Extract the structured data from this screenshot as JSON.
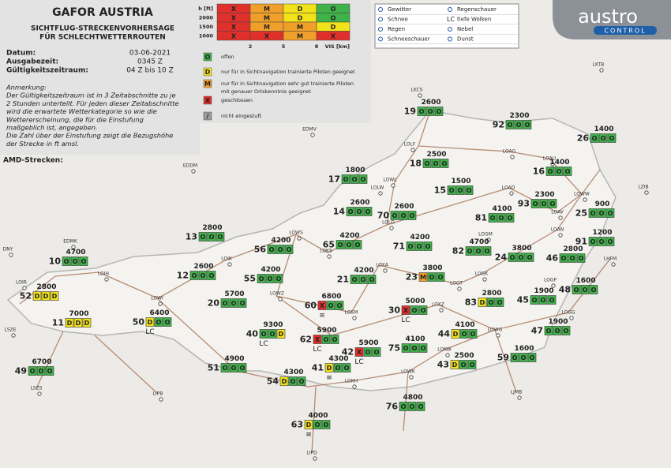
{
  "header": {
    "title": "GAFOR AUSTRIA",
    "subtitle": [
      "SICHTFLUG-STRECKENVORHERSAGE",
      "FÜR SCHLECHTWETTERROUTEN"
    ]
  },
  "info": [
    {
      "label": "Datum:",
      "value": "03-06-2021"
    },
    {
      "label": "Ausgabezeit:",
      "value": "0345 Z"
    },
    {
      "label": "Gültigkeitszeitraum:",
      "value": "04 Z bis 10 Z"
    }
  ],
  "note": [
    "Anmerkung:",
    "Der Gültigkeitszeitraum ist in 3 Zeitabschnitte zu je",
    "2 Stunden unterteilt. Für jeden dieser Zeitabschnitte",
    "wird die erwartete Wetterkategorie so wie die",
    "Wettererscheinung, die für die Einstufung",
    "maßgeblich ist, angegeben.",
    "Die Zahl über der Einstufung zeigt die Bezugshöhe",
    "der Strecke in ft amsl."
  ],
  "section": "AMD-Strecken:",
  "categories": [
    {
      "code": "O",
      "color": "#3fb24a",
      "text": [
        "offen"
      ]
    },
    {
      "code": "D",
      "color": "#f2e21a",
      "text": [
        "nur für in Sichtnavigation trainierte Piloten geeignet"
      ]
    },
    {
      "code": "M",
      "color": "#f0a02a",
      "text": [
        "nur für in Sichtnavigation sehr gut trainierte Piloten",
        "mit genauer Ortskenntnis geeignet"
      ]
    },
    {
      "code": "X",
      "color": "#e0302c",
      "text": [
        "geschlossen"
      ]
    },
    {
      "code": "/",
      "color": "#9a9a9a",
      "text": [
        "nicht eingestuft"
      ]
    }
  ],
  "chart": {
    "y_label": "h [ft]",
    "rows": [
      "2000",
      "1500",
      "1000"
    ],
    "cells": [
      [
        "X",
        "M",
        "D",
        "O"
      ],
      [
        "X",
        "M",
        "D",
        "O"
      ],
      [
        "X",
        "M",
        "M",
        "D"
      ],
      [
        "X",
        "X",
        "M",
        "X"
      ]
    ],
    "x_labels": [
      "2",
      "5",
      "8",
      "VIS [km]"
    ]
  },
  "weather_legend": [
    "Gewitter",
    "Regenschauer",
    "Schnee",
    "tiefe Wolken",
    "Regen",
    "Nebel",
    "Schneeschauer",
    "Dunst"
  ],
  "weather_symbol_text": "LC",
  "logo": {
    "name": "austro",
    "sub": "CONTROL"
  },
  "routes": [
    {
      "id": "19",
      "altitude": "2600",
      "status": [
        "O",
        "O",
        "O"
      ]
    },
    {
      "id": "92",
      "altitude": "2300",
      "status": [
        "O",
        "O",
        "O"
      ]
    },
    {
      "id": "26",
      "altitude": "1400",
      "status": [
        "O",
        "O",
        "O"
      ]
    },
    {
      "id": "18",
      "altitude": "2500",
      "status": [
        "O",
        "O",
        "O"
      ]
    },
    {
      "id": "17",
      "altitude": "1800",
      "status": [
        "O",
        "O",
        "O"
      ]
    },
    {
      "id": "16",
      "altitude": "1400",
      "status": [
        "O",
        "O",
        "O"
      ]
    },
    {
      "id": "15",
      "altitude": "1500",
      "status": [
        "O",
        "O",
        "O"
      ]
    },
    {
      "id": "14",
      "altitude": "2600",
      "status": [
        "O",
        "O",
        "O"
      ]
    },
    {
      "id": "70",
      "altitude": "2600",
      "status": [
        "O",
        "O",
        "O"
      ]
    },
    {
      "id": "93",
      "altitude": "2300",
      "status": [
        "O",
        "O",
        "O"
      ]
    },
    {
      "id": "81",
      "altitude": "4100",
      "status": [
        "O",
        "O",
        "O"
      ]
    },
    {
      "id": "25",
      "altitude": "900",
      "status": [
        "O",
        "O",
        "O"
      ]
    },
    {
      "id": "13",
      "altitude": "2800",
      "status": [
        "O",
        "O",
        "O"
      ]
    },
    {
      "id": "56",
      "altitude": "4200",
      "status": [
        "O",
        "O",
        "O"
      ]
    },
    {
      "id": "65",
      "altitude": "4200",
      "status": [
        "O",
        "O",
        "O"
      ]
    },
    {
      "id": "71",
      "altitude": "4200",
      "status": [
        "O",
        "O",
        "O"
      ]
    },
    {
      "id": "82",
      "altitude": "4700",
      "status": [
        "O",
        "O",
        "O"
      ]
    },
    {
      "id": "24",
      "altitude": "3800",
      "status": [
        "O",
        "O",
        "O"
      ]
    },
    {
      "id": "91",
      "altitude": "1200",
      "status": [
        "O",
        "O",
        "O"
      ]
    },
    {
      "id": "46",
      "altitude": "2800",
      "status": [
        "O",
        "O",
        "O"
      ]
    },
    {
      "id": "10",
      "altitude": "4700",
      "status": [
        "O",
        "O",
        "O"
      ]
    },
    {
      "id": "12",
      "altitude": "2600",
      "status": [
        "O",
        "O",
        "O"
      ]
    },
    {
      "id": "55",
      "altitude": "4200",
      "status": [
        "O",
        "O",
        "O"
      ]
    },
    {
      "id": "21",
      "altitude": "4200",
      "status": [
        "O",
        "O",
        "O"
      ]
    },
    {
      "id": "23",
      "altitude": "3800",
      "status": [
        "M",
        "O",
        "O"
      ]
    },
    {
      "id": "48",
      "altitude": "1600",
      "status": [
        "O",
        "O",
        "O"
      ]
    },
    {
      "id": "52",
      "altitude": "2800",
      "status": [
        "D",
        "D",
        "D"
      ]
    },
    {
      "id": "20",
      "altitude": "5700",
      "status": [
        "O",
        "O",
        "O"
      ]
    },
    {
      "id": "60",
      "altitude": "6800",
      "status": [
        "X",
        "O",
        "O"
      ],
      "symbol": "≡"
    },
    {
      "id": "83",
      "altitude": "2800",
      "status": [
        "D",
        "O",
        "O"
      ]
    },
    {
      "id": "45",
      "altitude": "1900",
      "status": [
        "O",
        "O",
        "O"
      ]
    },
    {
      "id": "30",
      "altitude": "5000",
      "status": [
        "X",
        "O",
        "O"
      ],
      "symbol": "LC"
    },
    {
      "id": "11",
      "altitude": "7000",
      "status": [
        "D",
        "D",
        "D"
      ]
    },
    {
      "id": "50",
      "altitude": "6400",
      "status": [
        "D",
        "O",
        "O"
      ],
      "symbol": "LC"
    },
    {
      "id": "47",
      "altitude": "1900",
      "status": [
        "O",
        "O",
        "O"
      ]
    },
    {
      "id": "40",
      "altitude": "9300",
      "status": [
        "O",
        "O",
        "D"
      ],
      "symbol": "LC"
    },
    {
      "id": "62",
      "altitude": "5900",
      "status": [
        "X",
        "O",
        "O"
      ],
      "symbol": "LC"
    },
    {
      "id": "44",
      "altitude": "4100",
      "status": [
        "D",
        "O",
        "O"
      ]
    },
    {
      "id": "42",
      "altitude": "5900",
      "status": [
        "X",
        "O",
        "O"
      ],
      "symbol": "LC"
    },
    {
      "id": "75",
      "altitude": "4100",
      "status": [
        "O",
        "O",
        "O"
      ]
    },
    {
      "id": "59",
      "altitude": "1600",
      "status": [
        "O",
        "O",
        "O"
      ]
    },
    {
      "id": "49",
      "altitude": "6700",
      "status": [
        "O",
        "O",
        "O"
      ]
    },
    {
      "id": "51",
      "altitude": "4900",
      "status": [
        "O",
        "O",
        "O"
      ]
    },
    {
      "id": "41",
      "altitude": "4300",
      "status": [
        "D",
        "O",
        "O"
      ],
      "symbol": "≡"
    },
    {
      "id": "43",
      "altitude": "2500",
      "status": [
        "D",
        "O",
        "O"
      ]
    },
    {
      "id": "54",
      "altitude": "4300",
      "status": [
        "D",
        "O",
        "O"
      ]
    },
    {
      "id": "76",
      "altitude": "4800",
      "status": [
        "O",
        "O",
        "O"
      ]
    },
    {
      "id": "63",
      "altitude": "4000",
      "status": [
        "D",
        "O",
        "O"
      ],
      "symbol": "≡"
    }
  ],
  "airports": [
    "LKCS",
    "LKTB",
    "EDMV",
    "LOLF",
    "LOAG",
    "LOAU",
    "EDDM",
    "LOWL",
    "LOLW",
    "LOAD",
    "LZIB",
    "LOWW",
    "LOAV",
    "LOWS",
    "EDMK",
    "LOLO",
    "LOAN",
    "LOGM",
    "LOXA",
    "LOKS",
    "LOGK",
    "LHFM",
    "DNY",
    "LOIK",
    "LOIH",
    "LOWZ",
    "LOGT",
    "LOIR",
    "LOWI",
    "LOGP",
    "LOXZ",
    "LOGG",
    "LOSM",
    "LSZE",
    "LOWG",
    "LOKW",
    "LSZS",
    "LOWK",
    "LOKH",
    "LIPB",
    "LJMB",
    "LIPD"
  ]
}
